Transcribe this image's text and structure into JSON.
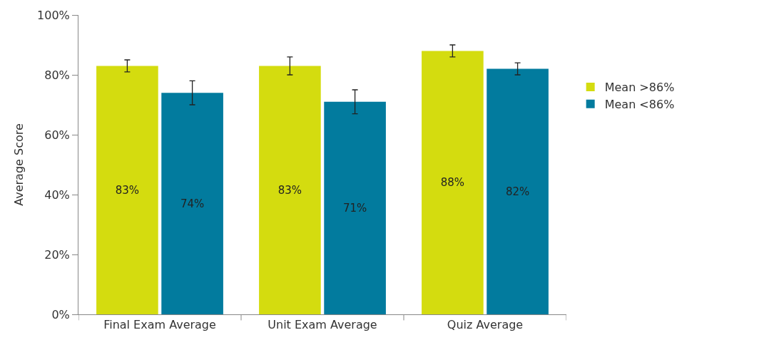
{
  "chart_data": {
    "type": "bar",
    "ylabel": "Average Score",
    "categories": [
      "Final Exam Average",
      "Unit Exam Average",
      "Quiz Average"
    ],
    "series": [
      {
        "name": "Mean >86%",
        "color": "#d4dc0f",
        "values": [
          83,
          83,
          88
        ],
        "errors": [
          2,
          3,
          2
        ],
        "value_labels": [
          "83%",
          "83%",
          "88%"
        ]
      },
      {
        "name": "Mean <86%",
        "color": "#027b9e",
        "values": [
          74,
          71,
          82
        ],
        "errors": [
          4,
          4,
          2
        ],
        "value_labels": [
          "74%",
          "71%",
          "82%"
        ]
      }
    ],
    "ylim": [
      0,
      100
    ],
    "yticks": [
      {
        "value": 0,
        "label": "0%"
      },
      {
        "value": 20,
        "label": "20%"
      },
      {
        "value": 40,
        "label": "40%"
      },
      {
        "value": 60,
        "label": "60%"
      },
      {
        "value": 80,
        "label": "80%"
      },
      {
        "value": 100,
        "label": "100%"
      }
    ],
    "legend": "right"
  }
}
